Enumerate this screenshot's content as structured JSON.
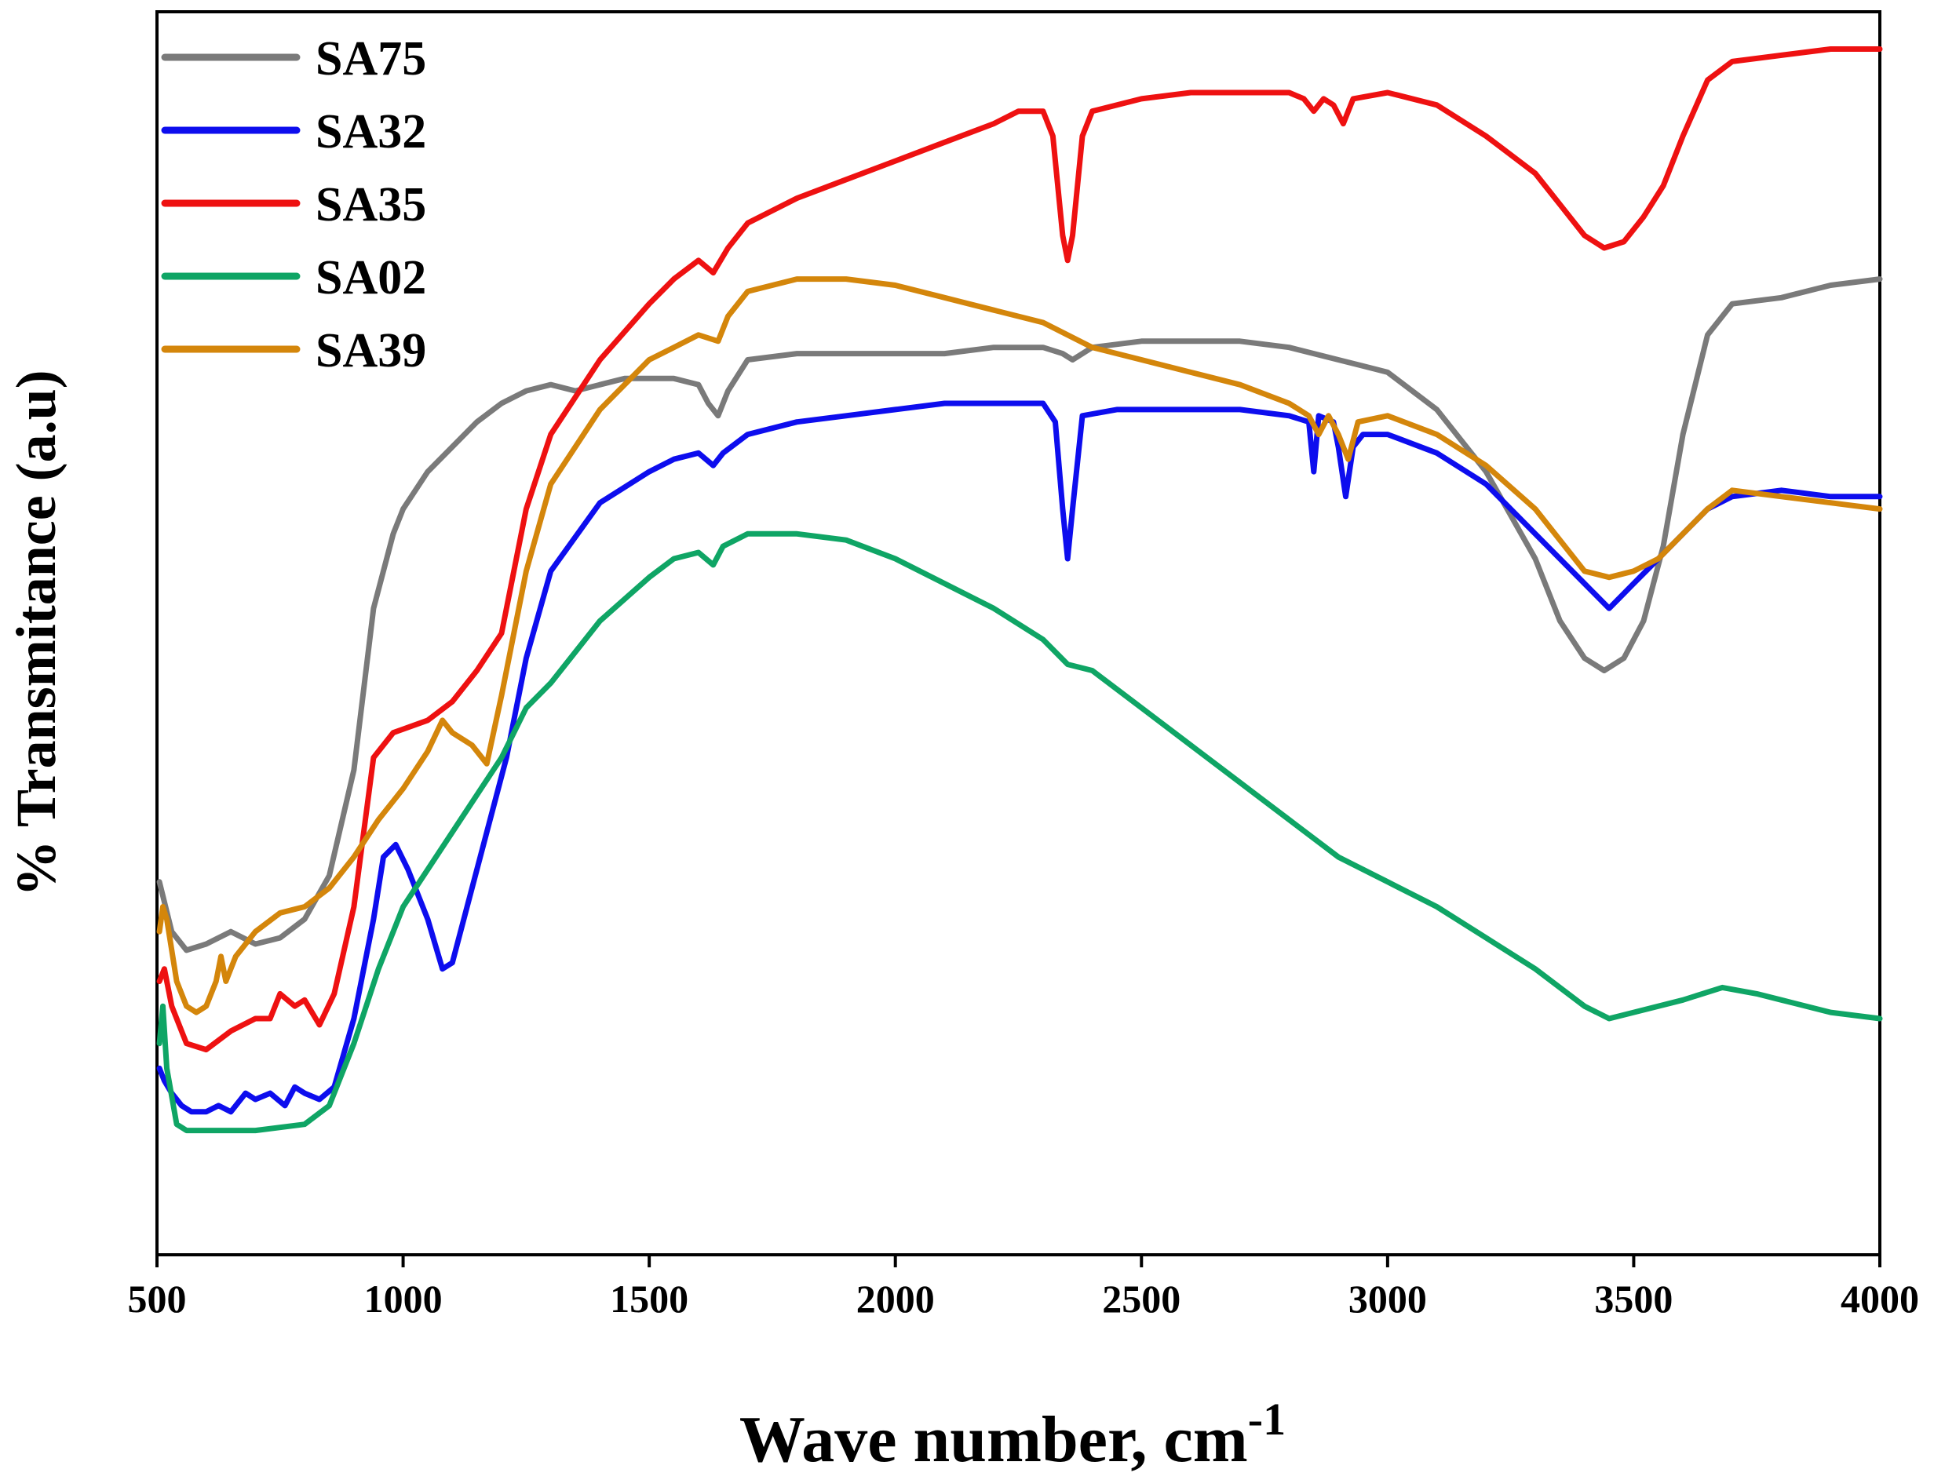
{
  "chart_data": {
    "type": "line",
    "xlabel": "Wave number, cm",
    "xlabel_superscript": "-1",
    "ylabel": "% Transmitance (a.u)",
    "xlim": [
      500,
      4000
    ],
    "ylim": [
      0,
      100
    ],
    "xticks": [
      500,
      1000,
      1500,
      2000,
      2500,
      3000,
      3500,
      4000
    ],
    "yticks_shown": false,
    "grid": false,
    "legend_position": "top-left",
    "series": [
      {
        "name": "SA75",
        "color": "#7a7a7a",
        "points": [
          [
            505,
            30
          ],
          [
            530,
            26
          ],
          [
            560,
            24.5
          ],
          [
            600,
            25
          ],
          [
            650,
            26
          ],
          [
            700,
            25
          ],
          [
            750,
            25.5
          ],
          [
            800,
            27
          ],
          [
            850,
            30.5
          ],
          [
            900,
            39
          ],
          [
            940,
            52
          ],
          [
            980,
            58
          ],
          [
            1000,
            60
          ],
          [
            1050,
            63
          ],
          [
            1100,
            65
          ],
          [
            1150,
            67
          ],
          [
            1200,
            68.5
          ],
          [
            1250,
            69.5
          ],
          [
            1300,
            70
          ],
          [
            1350,
            69.5
          ],
          [
            1400,
            70
          ],
          [
            1450,
            70.5
          ],
          [
            1500,
            70.5
          ],
          [
            1550,
            70.5
          ],
          [
            1600,
            70
          ],
          [
            1620,
            68.5
          ],
          [
            1640,
            67.5
          ],
          [
            1660,
            69.5
          ],
          [
            1700,
            72
          ],
          [
            1800,
            72.5
          ],
          [
            1900,
            72.5
          ],
          [
            2000,
            72.5
          ],
          [
            2100,
            72.5
          ],
          [
            2200,
            73
          ],
          [
            2300,
            73
          ],
          [
            2340,
            72.5
          ],
          [
            2360,
            72
          ],
          [
            2400,
            73
          ],
          [
            2500,
            73.5
          ],
          [
            2600,
            73.5
          ],
          [
            2700,
            73.5
          ],
          [
            2800,
            73
          ],
          [
            2900,
            72
          ],
          [
            2950,
            71.5
          ],
          [
            3000,
            71
          ],
          [
            3100,
            68
          ],
          [
            3200,
            63
          ],
          [
            3300,
            56
          ],
          [
            3350,
            51
          ],
          [
            3400,
            48
          ],
          [
            3440,
            47
          ],
          [
            3480,
            48
          ],
          [
            3520,
            51
          ],
          [
            3560,
            57
          ],
          [
            3600,
            66
          ],
          [
            3650,
            74
          ],
          [
            3700,
            76.5
          ],
          [
            3800,
            77
          ],
          [
            3900,
            78
          ],
          [
            4000,
            78.5
          ]
        ]
      },
      {
        "name": "SA32",
        "color": "#0d0dee",
        "points": [
          [
            505,
            15
          ],
          [
            515,
            14
          ],
          [
            530,
            13
          ],
          [
            550,
            12
          ],
          [
            570,
            11.5
          ],
          [
            600,
            11.5
          ],
          [
            625,
            12
          ],
          [
            650,
            11.5
          ],
          [
            680,
            13
          ],
          [
            700,
            12.5
          ],
          [
            730,
            13
          ],
          [
            760,
            12
          ],
          [
            780,
            13.5
          ],
          [
            800,
            13
          ],
          [
            830,
            12.5
          ],
          [
            860,
            13.5
          ],
          [
            900,
            19
          ],
          [
            940,
            27
          ],
          [
            960,
            32
          ],
          [
            985,
            33
          ],
          [
            1010,
            31
          ],
          [
            1050,
            27
          ],
          [
            1080,
            23
          ],
          [
            1100,
            23.5
          ],
          [
            1130,
            28
          ],
          [
            1170,
            34
          ],
          [
            1210,
            40
          ],
          [
            1250,
            48
          ],
          [
            1300,
            55
          ],
          [
            1400,
            60.5
          ],
          [
            1500,
            63
          ],
          [
            1550,
            64
          ],
          [
            1600,
            64.5
          ],
          [
            1630,
            63.5
          ],
          [
            1650,
            64.5
          ],
          [
            1700,
            66
          ],
          [
            1800,
            67
          ],
          [
            1900,
            67.5
          ],
          [
            2000,
            68
          ],
          [
            2100,
            68.5
          ],
          [
            2200,
            68.5
          ],
          [
            2300,
            68.5
          ],
          [
            2325,
            67
          ],
          [
            2340,
            60
          ],
          [
            2350,
            56
          ],
          [
            2360,
            60
          ],
          [
            2380,
            67.5
          ],
          [
            2450,
            68
          ],
          [
            2600,
            68
          ],
          [
            2700,
            68
          ],
          [
            2800,
            67.5
          ],
          [
            2840,
            67
          ],
          [
            2850,
            63
          ],
          [
            2860,
            67.5
          ],
          [
            2890,
            67
          ],
          [
            2900,
            65
          ],
          [
            2915,
            61
          ],
          [
            2930,
            65
          ],
          [
            2950,
            66
          ],
          [
            3000,
            66
          ],
          [
            3100,
            64.5
          ],
          [
            3200,
            62
          ],
          [
            3300,
            58
          ],
          [
            3400,
            54
          ],
          [
            3450,
            52
          ],
          [
            3500,
            54
          ],
          [
            3550,
            56
          ],
          [
            3600,
            58
          ],
          [
            3650,
            60
          ],
          [
            3700,
            61
          ],
          [
            3800,
            61.5
          ],
          [
            3900,
            61
          ],
          [
            4000,
            61
          ]
        ]
      },
      {
        "name": "SA35",
        "color": "#ee1111",
        "points": [
          [
            505,
            22
          ],
          [
            515,
            23
          ],
          [
            530,
            20
          ],
          [
            560,
            17
          ],
          [
            600,
            16.5
          ],
          [
            650,
            18
          ],
          [
            700,
            19
          ],
          [
            730,
            19
          ],
          [
            750,
            21
          ],
          [
            780,
            20
          ],
          [
            800,
            20.5
          ],
          [
            830,
            18.5
          ],
          [
            860,
            21
          ],
          [
            900,
            28
          ],
          [
            940,
            40
          ],
          [
            980,
            42
          ],
          [
            1050,
            43
          ],
          [
            1100,
            44.5
          ],
          [
            1150,
            47
          ],
          [
            1200,
            50
          ],
          [
            1250,
            60
          ],
          [
            1300,
            66
          ],
          [
            1400,
            72
          ],
          [
            1500,
            76.5
          ],
          [
            1550,
            78.5
          ],
          [
            1600,
            80
          ],
          [
            1630,
            79
          ],
          [
            1660,
            81
          ],
          [
            1700,
            83
          ],
          [
            1800,
            85
          ],
          [
            1900,
            86.5
          ],
          [
            2000,
            88
          ],
          [
            2100,
            89.5
          ],
          [
            2200,
            91
          ],
          [
            2250,
            92
          ],
          [
            2300,
            92
          ],
          [
            2320,
            90
          ],
          [
            2340,
            82
          ],
          [
            2350,
            80
          ],
          [
            2360,
            82
          ],
          [
            2380,
            90
          ],
          [
            2400,
            92
          ],
          [
            2500,
            93
          ],
          [
            2600,
            93.5
          ],
          [
            2700,
            93.5
          ],
          [
            2800,
            93.5
          ],
          [
            2830,
            93
          ],
          [
            2850,
            92
          ],
          [
            2870,
            93
          ],
          [
            2890,
            92.5
          ],
          [
            2910,
            91
          ],
          [
            2930,
            93
          ],
          [
            3000,
            93.5
          ],
          [
            3100,
            92.5
          ],
          [
            3200,
            90
          ],
          [
            3300,
            87
          ],
          [
            3350,
            84.5
          ],
          [
            3400,
            82
          ],
          [
            3440,
            81
          ],
          [
            3480,
            81.5
          ],
          [
            3520,
            83.5
          ],
          [
            3560,
            86
          ],
          [
            3600,
            90
          ],
          [
            3650,
            94.5
          ],
          [
            3700,
            96
          ],
          [
            3800,
            96.5
          ],
          [
            3900,
            97
          ],
          [
            4000,
            97
          ]
        ]
      },
      {
        "name": "SA02",
        "color": "#0fa565",
        "points": [
          [
            505,
            17
          ],
          [
            512,
            20
          ],
          [
            520,
            15
          ],
          [
            540,
            10.5
          ],
          [
            560,
            10
          ],
          [
            600,
            10
          ],
          [
            700,
            10
          ],
          [
            800,
            10.5
          ],
          [
            850,
            12
          ],
          [
            900,
            17
          ],
          [
            950,
            23
          ],
          [
            1000,
            28
          ],
          [
            1100,
            34
          ],
          [
            1200,
            40
          ],
          [
            1250,
            44
          ],
          [
            1300,
            46
          ],
          [
            1400,
            51
          ],
          [
            1500,
            54.5
          ],
          [
            1550,
            56
          ],
          [
            1600,
            56.5
          ],
          [
            1630,
            55.5
          ],
          [
            1650,
            57
          ],
          [
            1700,
            58
          ],
          [
            1800,
            58
          ],
          [
            1900,
            57.5
          ],
          [
            2000,
            56
          ],
          [
            2100,
            54
          ],
          [
            2200,
            52
          ],
          [
            2300,
            49.5
          ],
          [
            2350,
            47.5
          ],
          [
            2400,
            47
          ],
          [
            2500,
            44
          ],
          [
            2600,
            41
          ],
          [
            2700,
            38
          ],
          [
            2800,
            35
          ],
          [
            2900,
            32
          ],
          [
            3000,
            30
          ],
          [
            3100,
            28
          ],
          [
            3200,
            25.5
          ],
          [
            3300,
            23
          ],
          [
            3400,
            20
          ],
          [
            3450,
            19
          ],
          [
            3500,
            19.5
          ],
          [
            3600,
            20.5
          ],
          [
            3680,
            21.5
          ],
          [
            3750,
            21
          ],
          [
            3800,
            20.5
          ],
          [
            3900,
            19.5
          ],
          [
            4000,
            19
          ]
        ]
      },
      {
        "name": "SA39",
        "color": "#d4860b",
        "points": [
          [
            505,
            26
          ],
          [
            512,
            28
          ],
          [
            520,
            27
          ],
          [
            540,
            22
          ],
          [
            560,
            20
          ],
          [
            580,
            19.5
          ],
          [
            600,
            20
          ],
          [
            620,
            22
          ],
          [
            630,
            24
          ],
          [
            640,
            22
          ],
          [
            660,
            24
          ],
          [
            700,
            26
          ],
          [
            750,
            27.5
          ],
          [
            800,
            28
          ],
          [
            850,
            29.5
          ],
          [
            900,
            32
          ],
          [
            950,
            35
          ],
          [
            1000,
            37.5
          ],
          [
            1050,
            40.5
          ],
          [
            1080,
            43
          ],
          [
            1100,
            42
          ],
          [
            1140,
            41
          ],
          [
            1170,
            39.5
          ],
          [
            1200,
            45
          ],
          [
            1250,
            55
          ],
          [
            1300,
            62
          ],
          [
            1400,
            68
          ],
          [
            1500,
            72
          ],
          [
            1550,
            73
          ],
          [
            1600,
            74
          ],
          [
            1640,
            73.5
          ],
          [
            1660,
            75.5
          ],
          [
            1700,
            77.5
          ],
          [
            1800,
            78.5
          ],
          [
            1900,
            78.5
          ],
          [
            2000,
            78
          ],
          [
            2100,
            77
          ],
          [
            2200,
            76
          ],
          [
            2300,
            75
          ],
          [
            2400,
            73
          ],
          [
            2500,
            72
          ],
          [
            2600,
            71
          ],
          [
            2700,
            70
          ],
          [
            2800,
            68.5
          ],
          [
            2840,
            67.5
          ],
          [
            2860,
            66
          ],
          [
            2880,
            67.5
          ],
          [
            2900,
            66
          ],
          [
            2920,
            64
          ],
          [
            2940,
            67
          ],
          [
            3000,
            67.5
          ],
          [
            3100,
            66
          ],
          [
            3200,
            63.5
          ],
          [
            3300,
            60
          ],
          [
            3400,
            55
          ],
          [
            3450,
            54.5
          ],
          [
            3500,
            55
          ],
          [
            3550,
            56
          ],
          [
            3600,
            58
          ],
          [
            3650,
            60
          ],
          [
            3700,
            61.5
          ],
          [
            3800,
            61
          ],
          [
            3900,
            60.5
          ],
          [
            4000,
            60
          ]
        ]
      }
    ]
  }
}
